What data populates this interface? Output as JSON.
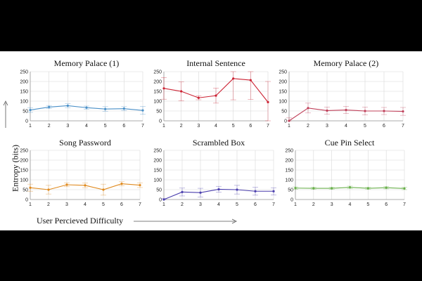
{
  "figure": {
    "ylabel": "Entropy (bits)",
    "xlabel": "User Percieved Difficulty"
  },
  "chart_data": [
    {
      "type": "line",
      "title": "Memory Palace (1)",
      "x": [
        1,
        2,
        3,
        4,
        5,
        6,
        7
      ],
      "series": [
        {
          "values": [
            55,
            70,
            77,
            67,
            60,
            62,
            53
          ],
          "err": [
            12,
            8,
            10,
            8,
            12,
            10,
            20
          ],
          "color": "#4a90c8"
        }
      ],
      "ylim": [
        0,
        250
      ],
      "yticks": [
        0,
        50,
        100,
        150,
        200,
        250
      ],
      "grid": true
    },
    {
      "type": "line",
      "title": "Internal Sentence",
      "x": [
        1,
        2,
        3,
        4,
        5,
        6,
        7
      ],
      "series": [
        {
          "values": [
            165,
            150,
            117,
            128,
            215,
            207,
            95
          ],
          "err": [
            55,
            48,
            10,
            38,
            108,
            98,
            105
          ],
          "color": "#cc2233"
        }
      ],
      "ylim": [
        0,
        250
      ],
      "yticks": [
        0,
        50,
        100,
        150,
        200,
        250
      ],
      "grid": true
    },
    {
      "type": "line",
      "title": "Memory Palace (2)",
      "x": [
        1,
        2,
        3,
        4,
        5,
        6,
        7
      ],
      "series": [
        {
          "values": [
            0,
            65,
            52,
            55,
            50,
            50,
            48
          ],
          "err": [
            15,
            25,
            18,
            18,
            20,
            18,
            20
          ],
          "color": "#c0405a"
        }
      ],
      "ylim": [
        0,
        250
      ],
      "yticks": [
        0,
        50,
        100,
        150,
        200,
        250
      ],
      "grid": true
    },
    {
      "type": "line",
      "title": "Song Password",
      "x": [
        1,
        2,
        3,
        4,
        5,
        6,
        7
      ],
      "series": [
        {
          "values": [
            60,
            50,
            75,
            72,
            50,
            80,
            73
          ],
          "err": [
            18,
            22,
            10,
            12,
            28,
            10,
            12
          ],
          "color": "#e08a1e"
        }
      ],
      "ylim": [
        0,
        250
      ],
      "yticks": [
        0,
        50,
        100,
        150,
        200,
        250
      ],
      "grid": true
    },
    {
      "type": "line",
      "title": "Scrambled Box",
      "x": [
        1,
        2,
        3,
        4,
        5,
        6,
        7
      ],
      "series": [
        {
          "values": [
            0,
            38,
            35,
            52,
            50,
            42,
            42
          ],
          "err": [
            5,
            20,
            22,
            15,
            22,
            20,
            18
          ],
          "color": "#4b3fae"
        }
      ],
      "ylim": [
        0,
        250
      ],
      "yticks": [
        0,
        50,
        100,
        150,
        200,
        250
      ],
      "grid": true
    },
    {
      "type": "line",
      "title": "Cue Pin Select",
      "x": [
        1,
        2,
        3,
        4,
        5,
        6,
        7
      ],
      "series": [
        {
          "values": [
            58,
            57,
            57,
            62,
            57,
            60,
            56
          ],
          "err": [
            6,
            6,
            6,
            6,
            6,
            6,
            6
          ],
          "color": "#6ab04c"
        }
      ],
      "ylim": [
        0,
        250
      ],
      "yticks": [
        0,
        50,
        100,
        150,
        200,
        250
      ],
      "grid": true
    }
  ]
}
